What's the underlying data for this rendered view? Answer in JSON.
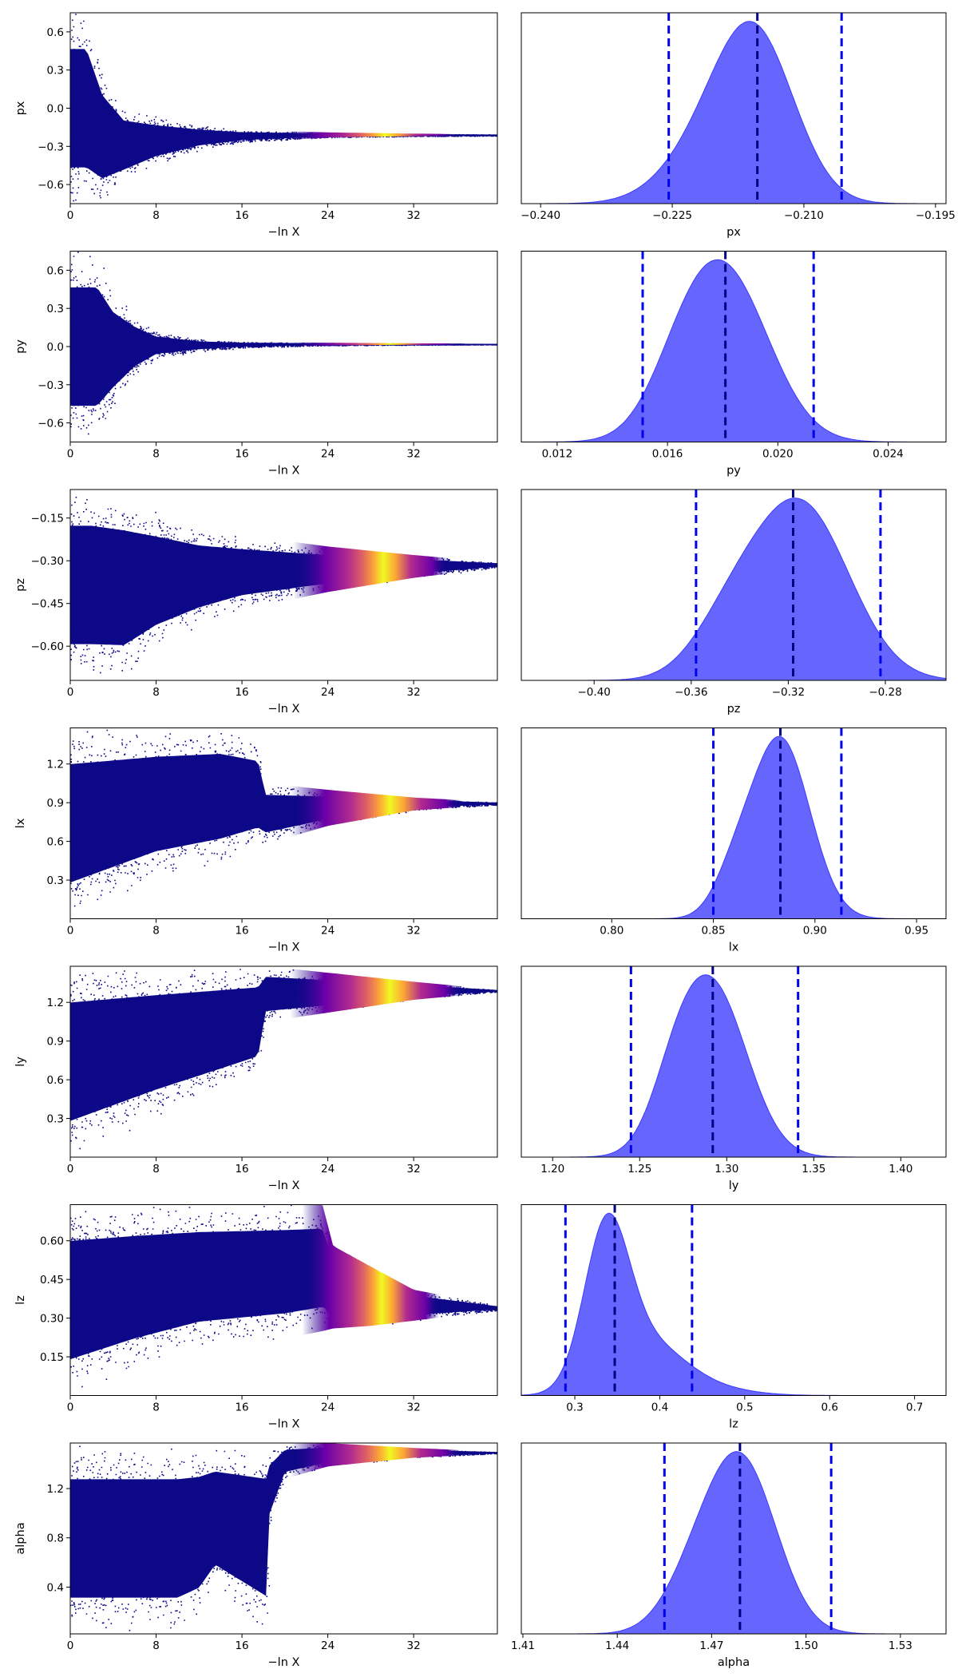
{
  "figure": {
    "xlabel_trace": "−ln X",
    "colors": {
      "kde_fill": "#6666ff",
      "kde_edge": "#3b3bff",
      "quantile_line": "#0000ee",
      "trace_low": "#0d0887",
      "trace_mid": "#9c179e",
      "trace_high": "#f0f921"
    }
  },
  "chart_data": [
    {
      "row": 0,
      "param": "px",
      "trace": {
        "type": "scatter",
        "xlabel": "−ln X",
        "ylabel": "px",
        "xlim": [
          0,
          39.8
        ],
        "ylim": [
          -0.75,
          0.75
        ],
        "xticks": [
          0,
          8,
          16,
          24,
          32
        ],
        "xtick_labels": [
          "0",
          "8",
          "16",
          "24",
          "32"
        ],
        "yticks": [
          -0.6,
          -0.3,
          0.0,
          0.3,
          0.6
        ],
        "ytick_labels": [
          "−0.6",
          "−0.3",
          "0.0",
          "0.3",
          "0.6"
        ],
        "profile": [
          [
            0,
            -0.75,
            0.75
          ],
          [
            1.5,
            -0.75,
            0.75
          ],
          [
            3,
            -0.75,
            0.3
          ],
          [
            5,
            -0.6,
            0.02
          ],
          [
            8,
            -0.45,
            -0.06
          ],
          [
            12,
            -0.33,
            -0.13
          ],
          [
            16,
            -0.27,
            -0.17
          ],
          [
            24,
            -0.23,
            -0.19
          ],
          [
            32,
            -0.22,
            -0.2
          ],
          [
            39.8,
            -0.215,
            -0.205
          ]
        ],
        "hot": [
          28,
          5
        ]
      },
      "posterior": {
        "type": "area",
        "xlabel": "px",
        "xlim": [
          -0.2422,
          -0.1938
        ],
        "xticks": [
          -0.24,
          -0.225,
          -0.21,
          -0.195
        ],
        "xtick_labels": [
          "−0.240",
          "−0.225",
          "−0.210",
          "−0.195"
        ],
        "components": [
          [
            1,
            -0.2155,
            0.0045
          ],
          [
            0.28,
            -0.2215,
            0.0048
          ]
        ],
        "quantiles": [
          -0.2254,
          -0.2153,
          -0.2057
        ]
      }
    },
    {
      "row": 1,
      "param": "py",
      "trace": {
        "type": "scatter",
        "xlabel": "−ln X",
        "ylabel": "py",
        "xlim": [
          0,
          39.8
        ],
        "ylim": [
          -0.75,
          0.75
        ],
        "xticks": [
          0,
          8,
          16,
          24,
          32
        ],
        "xtick_labels": [
          "0",
          "8",
          "16",
          "24",
          "32"
        ],
        "yticks": [
          -0.6,
          -0.3,
          0.0,
          0.3,
          0.6
        ],
        "ytick_labels": [
          "−0.6",
          "−0.3",
          "0.0",
          "0.3",
          "0.6"
        ],
        "profile": [
          [
            0,
            -0.75,
            0.75
          ],
          [
            2.5,
            -0.75,
            0.75
          ],
          [
            4,
            -0.5,
            0.45
          ],
          [
            6,
            -0.25,
            0.25
          ],
          [
            8,
            -0.1,
            0.12
          ],
          [
            12,
            -0.04,
            0.06
          ],
          [
            16,
            -0.01,
            0.04
          ],
          [
            24,
            0.01,
            0.03
          ],
          [
            39.8,
            0.018,
            0.022
          ]
        ],
        "hot": [
          28.5,
          5
        ]
      },
      "posterior": {
        "type": "area",
        "xlabel": "py",
        "xlim": [
          0.0107,
          0.0261
        ],
        "xticks": [
          0.012,
          0.016,
          0.02,
          0.024
        ],
        "xtick_labels": [
          "0.012",
          "0.016",
          "0.020",
          "0.024"
        ],
        "components": [
          [
            1,
            0.0181,
            0.0016
          ],
          [
            0.22,
            0.0165,
            0.0012
          ]
        ],
        "quantiles": [
          0.0151,
          0.0181,
          0.0213
        ]
      }
    },
    {
      "row": 2,
      "param": "pz",
      "trace": {
        "type": "scatter",
        "xlabel": "−ln X",
        "ylabel": "pz",
        "xlim": [
          0,
          39.8
        ],
        "ylim": [
          -0.72,
          -0.05
        ],
        "xticks": [
          0,
          8,
          16,
          24,
          32
        ],
        "xtick_labels": [
          "0",
          "8",
          "16",
          "24",
          "32"
        ],
        "yticks": [
          -0.6,
          -0.45,
          -0.3,
          -0.15
        ],
        "ytick_labels": [
          "−0.60",
          "−0.45",
          "−0.30",
          "−0.15"
        ],
        "profile": [
          [
            0,
            -0.72,
            -0.05
          ],
          [
            2,
            -0.72,
            -0.05
          ],
          [
            5,
            -0.72,
            -0.07
          ],
          [
            8,
            -0.62,
            -0.12
          ],
          [
            12,
            -0.53,
            -0.18
          ],
          [
            16,
            -0.47,
            -0.21
          ],
          [
            24,
            -0.41,
            -0.25
          ],
          [
            32,
            -0.36,
            -0.28
          ],
          [
            39.8,
            -0.325,
            -0.305
          ]
        ],
        "hot": [
          28,
          4.5
        ]
      },
      "posterior": {
        "type": "area",
        "xlabel": "pz",
        "xlim": [
          -0.43,
          -0.255
        ],
        "xticks": [
          -0.4,
          -0.36,
          -0.32,
          -0.28
        ],
        "xtick_labels": [
          "−0.40",
          "−0.36",
          "−0.32",
          "−0.28"
        ],
        "components": [
          [
            1,
            -0.315,
            0.02
          ],
          [
            0.25,
            -0.345,
            0.015
          ]
        ],
        "quantiles": [
          -0.358,
          -0.318,
          -0.282
        ]
      }
    },
    {
      "row": 3,
      "param": "lx",
      "trace": {
        "type": "scatter",
        "xlabel": "−ln X",
        "ylabel": "lx",
        "xlim": [
          0,
          39.8
        ],
        "ylim": [
          0.0,
          1.48
        ],
        "xticks": [
          0,
          8,
          16,
          24,
          32
        ],
        "xtick_labels": [
          "0",
          "8",
          "16",
          "24",
          "32"
        ],
        "yticks": [
          0.3,
          0.6,
          0.9,
          1.2
        ],
        "ytick_labels": [
          "0.3",
          "0.6",
          "0.9",
          "1.2"
        ],
        "profile": [
          [
            0,
            0.0,
            1.48
          ],
          [
            4,
            0.15,
            1.48
          ],
          [
            8,
            0.3,
            1.48
          ],
          [
            14,
            0.42,
            1.48
          ],
          [
            17.5,
            0.55,
            1.38
          ],
          [
            18.2,
            0.58,
            1.05
          ],
          [
            24,
            0.72,
            1.0
          ],
          [
            32,
            0.84,
            0.94
          ],
          [
            39.8,
            0.885,
            0.905
          ]
        ],
        "hot": [
          28.5,
          5
        ]
      },
      "posterior": {
        "type": "area",
        "xlabel": "lx",
        "xlim": [
          0.7555,
          0.9645
        ],
        "xticks": [
          0.8,
          0.85,
          0.9,
          0.95
        ],
        "xtick_labels": [
          "0.80",
          "0.85",
          "0.90",
          "0.95"
        ],
        "components": [
          [
            1,
            0.883,
            0.0145
          ],
          [
            0.18,
            0.86,
            0.01
          ]
        ],
        "quantiles": [
          0.85,
          0.883,
          0.913
        ]
      }
    },
    {
      "row": 4,
      "param": "ly",
      "trace": {
        "type": "scatter",
        "xlabel": "−ln X",
        "ylabel": "ly",
        "xlim": [
          0,
          39.8
        ],
        "ylim": [
          0.0,
          1.48
        ],
        "xticks": [
          0,
          8,
          16,
          24,
          32
        ],
        "xtick_labels": [
          "0",
          "8",
          "16",
          "24",
          "32"
        ],
        "yticks": [
          0.3,
          0.6,
          0.9,
          1.2
        ],
        "ytick_labels": [
          "0.3",
          "0.6",
          "0.9",
          "1.2"
        ],
        "profile": [
          [
            0,
            0.0,
            1.48
          ],
          [
            4,
            0.15,
            1.48
          ],
          [
            8,
            0.3,
            1.48
          ],
          [
            14,
            0.5,
            1.48
          ],
          [
            17.5,
            0.62,
            1.48
          ],
          [
            18.2,
            1.05,
            1.48
          ],
          [
            24,
            1.12,
            1.43
          ],
          [
            32,
            1.22,
            1.36
          ],
          [
            39.8,
            1.28,
            1.3
          ]
        ],
        "hot": [
          28.5,
          5
        ]
      },
      "posterior": {
        "type": "area",
        "xlabel": "ly",
        "xlim": [
          1.182,
          1.426
        ],
        "xticks": [
          1.2,
          1.25,
          1.3,
          1.35,
          1.4
        ],
        "xtick_labels": [
          "1.20",
          "1.25",
          "1.30",
          "1.35",
          "1.40"
        ],
        "components": [
          [
            1,
            1.292,
            0.02
          ],
          [
            0.25,
            1.27,
            0.014
          ]
        ],
        "quantiles": [
          1.245,
          1.292,
          1.341
        ]
      }
    },
    {
      "row": 5,
      "param": "lz",
      "trace": {
        "type": "scatter",
        "xlabel": "−ln X",
        "ylabel": "lz",
        "xlim": [
          0,
          39.8
        ],
        "ylim": [
          0.0,
          0.74
        ],
        "xticks": [
          0,
          8,
          16,
          24,
          32
        ],
        "xtick_labels": [
          "0",
          "8",
          "16",
          "24",
          "32"
        ],
        "yticks": [
          0.15,
          0.3,
          0.45,
          0.6
        ],
        "ytick_labels": [
          "0.15",
          "0.30",
          "0.45",
          "0.60"
        ],
        "profile": [
          [
            0,
            0.0,
            0.74
          ],
          [
            6,
            0.1,
            0.74
          ],
          [
            12,
            0.18,
            0.74
          ],
          [
            20,
            0.22,
            0.74
          ],
          [
            23.5,
            0.25,
            0.74
          ],
          [
            24.5,
            0.26,
            0.58
          ],
          [
            28,
            0.27,
            0.5
          ],
          [
            32,
            0.29,
            0.41
          ],
          [
            39.8,
            0.33,
            0.35
          ]
        ],
        "hot": [
          28,
          4
        ]
      },
      "posterior": {
        "type": "area",
        "xlabel": "lz",
        "xlim": [
          0.237,
          0.737
        ],
        "xticks": [
          0.3,
          0.4,
          0.5,
          0.6,
          0.7
        ],
        "xtick_labels": [
          "0.3",
          "0.4",
          "0.5",
          "0.6",
          "0.7"
        ],
        "components": [
          [
            1,
            0.337,
            0.026
          ],
          [
            0.35,
            0.38,
            0.045
          ],
          [
            0.05,
            0.45,
            0.05
          ]
        ],
        "quantiles": [
          0.289,
          0.347,
          0.438
        ]
      }
    },
    {
      "row": 6,
      "param": "alpha",
      "trace": {
        "type": "scatter",
        "xlabel": "−ln X",
        "ylabel": "alpha",
        "xlim": [
          0,
          39.8
        ],
        "ylim": [
          0.02,
          1.57
        ],
        "xticks": [
          0,
          8,
          16,
          24,
          32
        ],
        "xtick_labels": [
          "0",
          "8",
          "16",
          "24",
          "32"
        ],
        "yticks": [
          0.4,
          0.8,
          1.2
        ],
        "ytick_labels": [
          "0.4",
          "0.8",
          "1.2"
        ],
        "profile": [
          [
            0,
            0.02,
            1.57
          ],
          [
            10,
            0.02,
            1.57
          ],
          [
            12,
            0.12,
            1.57
          ],
          [
            13.5,
            0.35,
            1.57
          ],
          [
            18.5,
            0.02,
            1.57
          ],
          [
            16,
            0.15,
            1.4
          ],
          [
            20,
            1.28,
            1.57
          ],
          [
            24,
            1.38,
            1.57
          ],
          [
            32,
            1.45,
            1.53
          ],
          [
            39.8,
            1.485,
            1.5
          ]
        ],
        "hot": [
          28.5,
          5
        ]
      },
      "posterior": {
        "type": "area",
        "xlabel": "alpha",
        "xlim": [
          1.4095,
          1.5445
        ],
        "xticks": [
          1.41,
          1.44,
          1.47,
          1.5,
          1.53
        ],
        "xtick_labels": [
          "1.41",
          "1.44",
          "1.47",
          "1.50",
          "1.53"
        ],
        "components": [
          [
            1,
            1.48,
            0.011
          ],
          [
            0.3,
            1.465,
            0.01
          ]
        ],
        "quantiles": [
          1.455,
          1.479,
          1.508
        ]
      }
    }
  ]
}
